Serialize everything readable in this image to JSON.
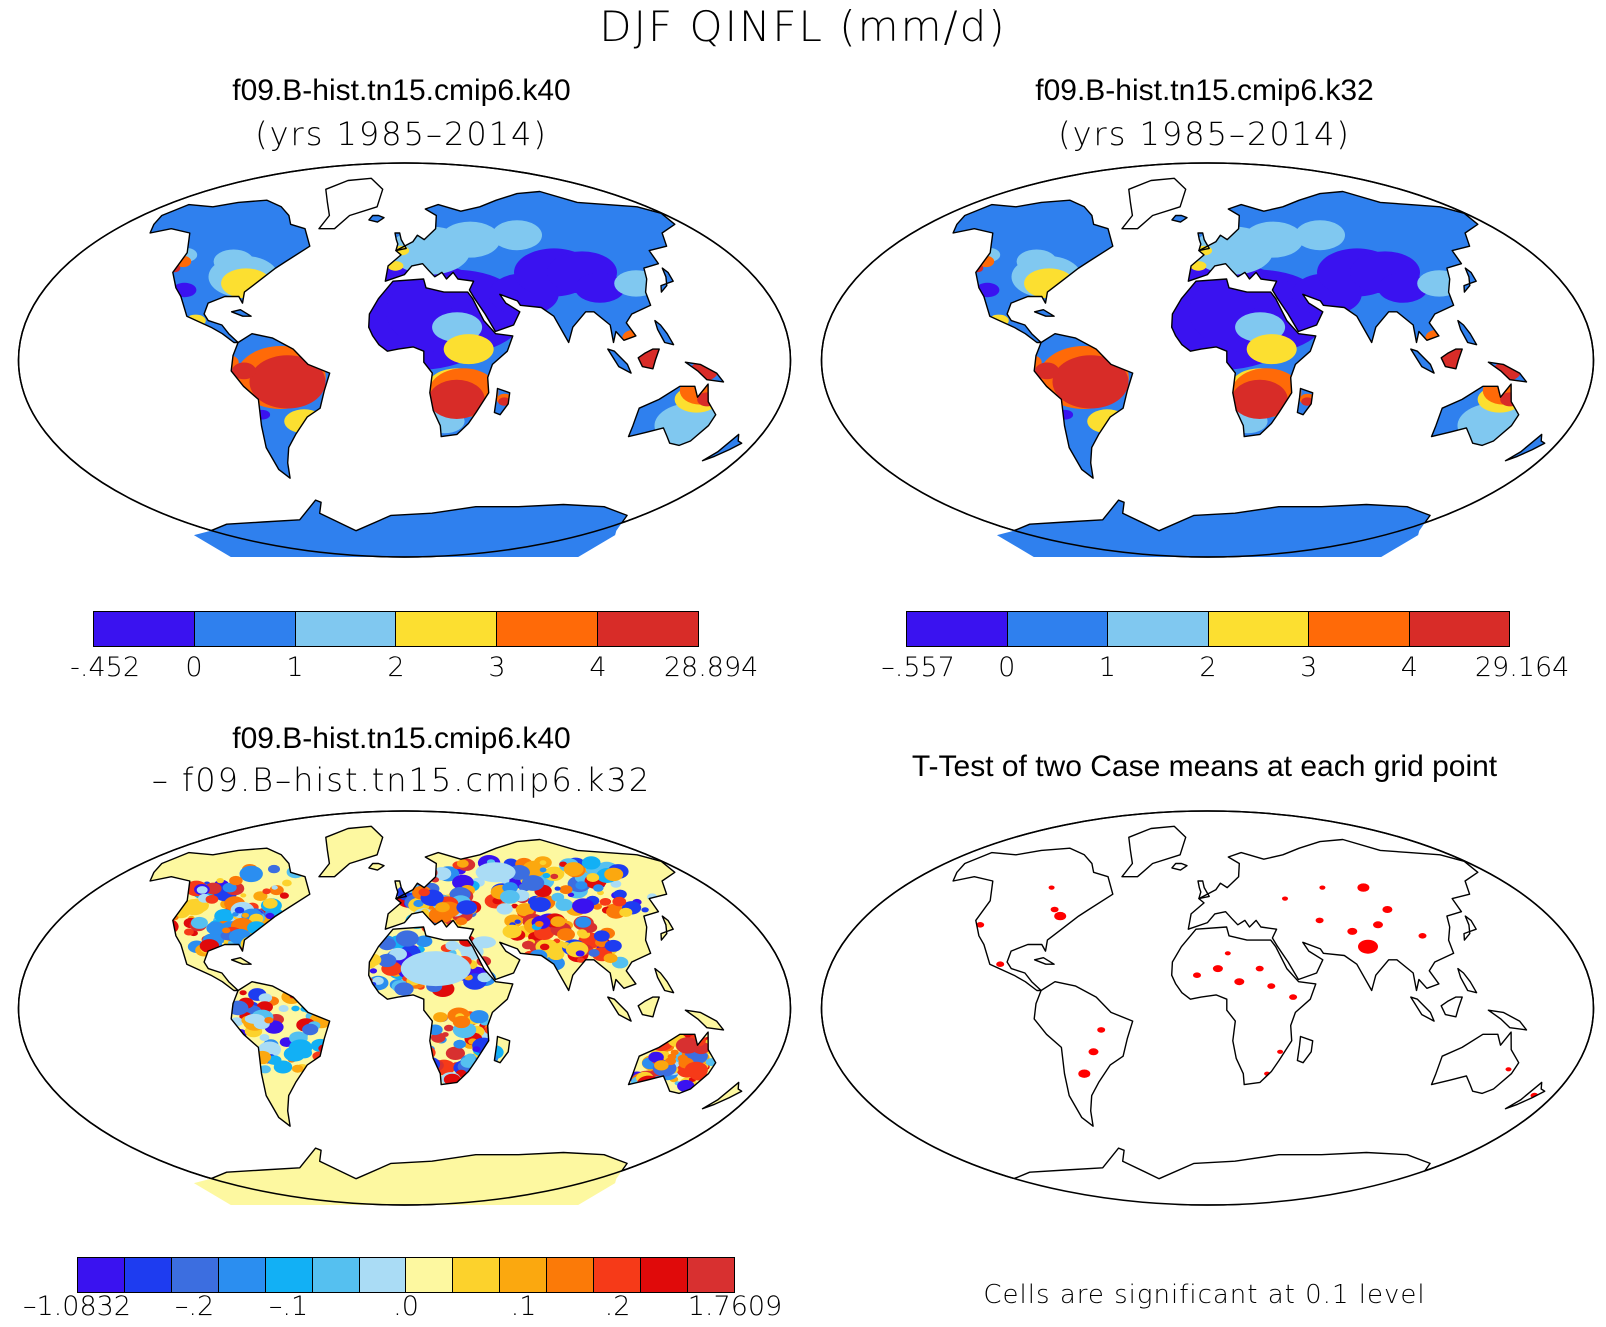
{
  "title": "DJF QINFL (mm/d)",
  "panels": [
    {
      "id": "k40",
      "title": "f09.B-hist.tn15.cmip6.k40",
      "subtitle": "(yrs 1985–2014)"
    },
    {
      "id": "k32",
      "title": "f09.B-hist.tn15.cmip6.k32",
      "subtitle": "(yrs 1985–2014)"
    },
    {
      "id": "diff",
      "title": "f09.B-hist.tn15.cmip6.k40",
      "subtitle": "– f09.B–hist.tn15.cmip6.k32"
    },
    {
      "id": "ttest",
      "title": "T-Test of two Case means at each grid point",
      "subtitle": ""
    }
  ],
  "colorbars": {
    "k40": {
      "colors": [
        "#3a12f0",
        "#2f80ee",
        "#80c8f0",
        "#fcdf30",
        "#ff6a08",
        "#d82c28"
      ],
      "labels": [
        "-.452",
        "0",
        "1",
        "2",
        "3",
        "4",
        "28.894"
      ]
    },
    "k32": {
      "colors": [
        "#3a12f0",
        "#2f80ee",
        "#80c8f0",
        "#fcdf30",
        "#ff6a08",
        "#d82c28"
      ],
      "labels": [
        "–.557",
        "0",
        "1",
        "2",
        "3",
        "4",
        "29.164"
      ]
    },
    "diff": {
      "colors": [
        "#3a12f0",
        "#1e3cf0",
        "#3c6ee0",
        "#2b8ef0",
        "#12b0f5",
        "#55c0f0",
        "#aadcf5",
        "#fdf8a0",
        "#fcd22c",
        "#fba80f",
        "#fb7a08",
        "#f63a18",
        "#e00a0a",
        "#d83030"
      ],
      "labels": [
        "–1.0832",
        "–.2",
        "–.1",
        ".0",
        ".1",
        ".2",
        "1.7609"
      ]
    }
  },
  "note": "Cells are significant at 0.1 level",
  "colors": {
    "ocean": "#ffffff",
    "land_outline": "#000000",
    "significant": "#ff0000",
    "diff_base": "#fdf8a0"
  }
}
